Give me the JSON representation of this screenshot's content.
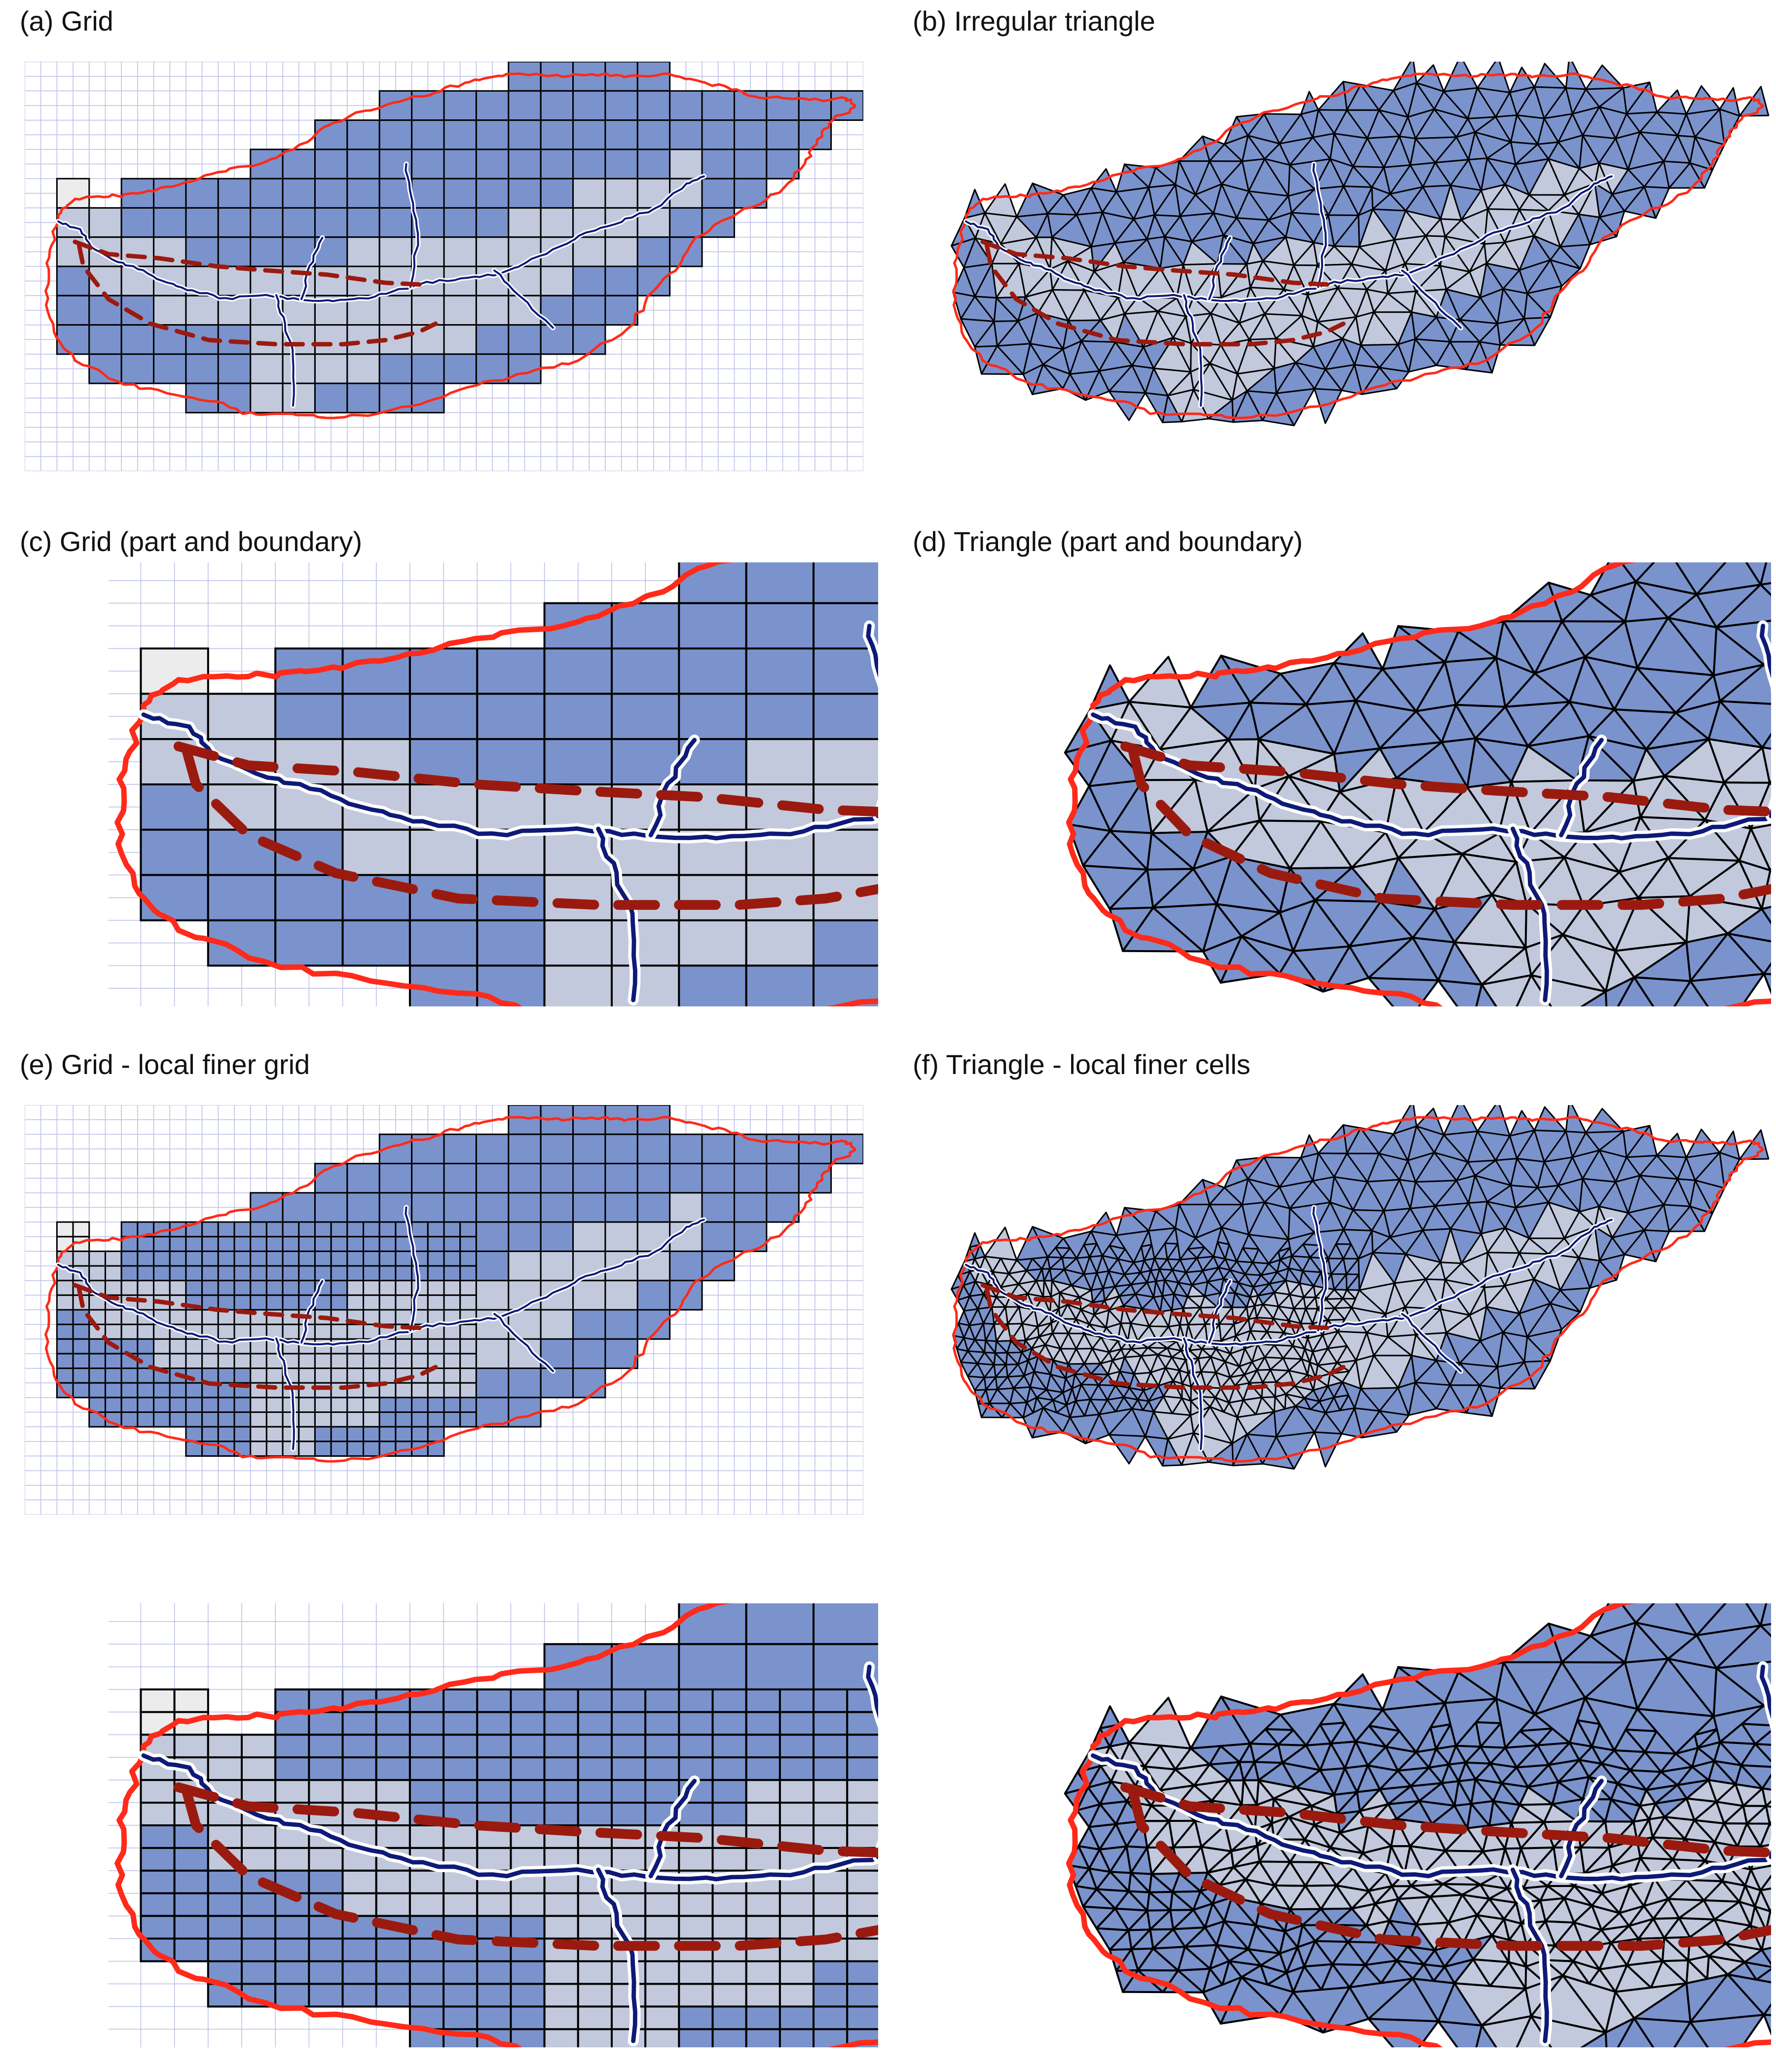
{
  "panels": [
    {
      "id": "a",
      "title": "(a) Grid",
      "kind": "grid",
      "view": "full",
      "refined": false
    },
    {
      "id": "b",
      "title": "(b) Irregular triangle",
      "kind": "tri",
      "view": "full",
      "refined": false
    },
    {
      "id": "c",
      "title": "(c) Grid (part and boundary)",
      "kind": "grid",
      "view": "zoom",
      "refined": false
    },
    {
      "id": "d",
      "title": "(d) Triangle (part and boundary)",
      "kind": "tri",
      "view": "zoom",
      "refined": false
    },
    {
      "id": "e",
      "title": "(e) Grid - local finer grid",
      "kind": "grid",
      "view": "full",
      "refined": true
    },
    {
      "id": "f",
      "title": "(f) Triangle - local finer cells",
      "kind": "tri",
      "view": "full",
      "refined": true
    },
    {
      "id": "g",
      "title": "",
      "kind": "grid",
      "view": "zoom",
      "refined": true
    },
    {
      "id": "h",
      "title": "",
      "kind": "tri",
      "view": "zoom",
      "refined": true
    }
  ],
  "colors": {
    "cell_fill": "#7b93cc",
    "stream_zone_fill": "#c2c9dc",
    "outside_cell_fill": "#ececec",
    "cell_edge": "#000000",
    "background_grid": "#b9bde6",
    "watershed_boundary": "#ff2a1a",
    "stream": "#0d1a78",
    "stream_casing": "#ffffff",
    "dashed_zone": "#9b1a0f"
  }
}
